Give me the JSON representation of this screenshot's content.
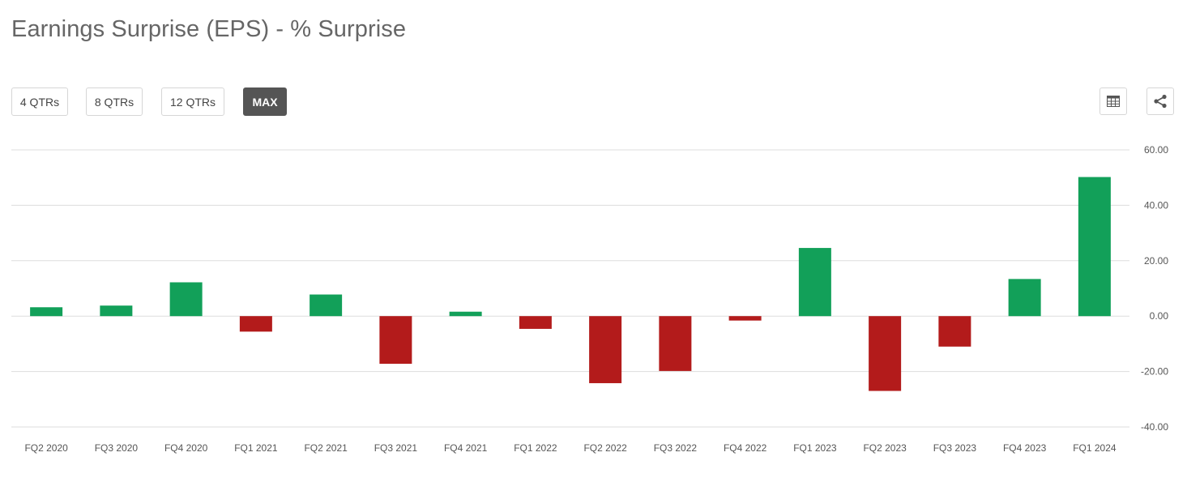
{
  "header": {
    "title": "Earnings Surprise (EPS) - % Surprise"
  },
  "range_buttons": [
    {
      "label": "4 QTRs",
      "active": false
    },
    {
      "label": "8 QTRs",
      "active": false
    },
    {
      "label": "12 QTRs",
      "active": false
    },
    {
      "label": "MAX",
      "active": true
    }
  ],
  "toolbar": {
    "table_icon": "table-icon",
    "share_icon": "share-icon"
  },
  "colors": {
    "positive": "#12a059",
    "negative": "#b31b1b",
    "grid": "#dddddd",
    "active_button": "#555555"
  },
  "chart_data": {
    "type": "bar",
    "title": "Earnings Surprise (EPS) - % Surprise",
    "xlabel": "",
    "ylabel": "",
    "categories": [
      "FQ2 2020",
      "FQ3 2020",
      "FQ4 2020",
      "FQ1 2021",
      "FQ2 2021",
      "FQ3 2021",
      "FQ4 2021",
      "FQ1 2022",
      "FQ2 2022",
      "FQ3 2022",
      "FQ4 2022",
      "FQ1 2023",
      "FQ2 2023",
      "FQ3 2023",
      "FQ4 2023",
      "FQ1 2024"
    ],
    "values": [
      3.2,
      3.8,
      12.2,
      -5.6,
      7.8,
      -17.2,
      1.6,
      -4.6,
      -24.2,
      -19.8,
      -1.6,
      24.6,
      -27.0,
      -11.0,
      13.4,
      50.2
    ],
    "ylim": [
      -40,
      60
    ],
    "yticks": [
      "60.00",
      "40.00",
      "20.00",
      "0.00",
      "-20.00",
      "-40.00"
    ],
    "ytick_values": [
      60,
      40,
      20,
      0,
      -20,
      -40
    ],
    "y_axis_side": "right",
    "grid": true,
    "legend": "none"
  }
}
